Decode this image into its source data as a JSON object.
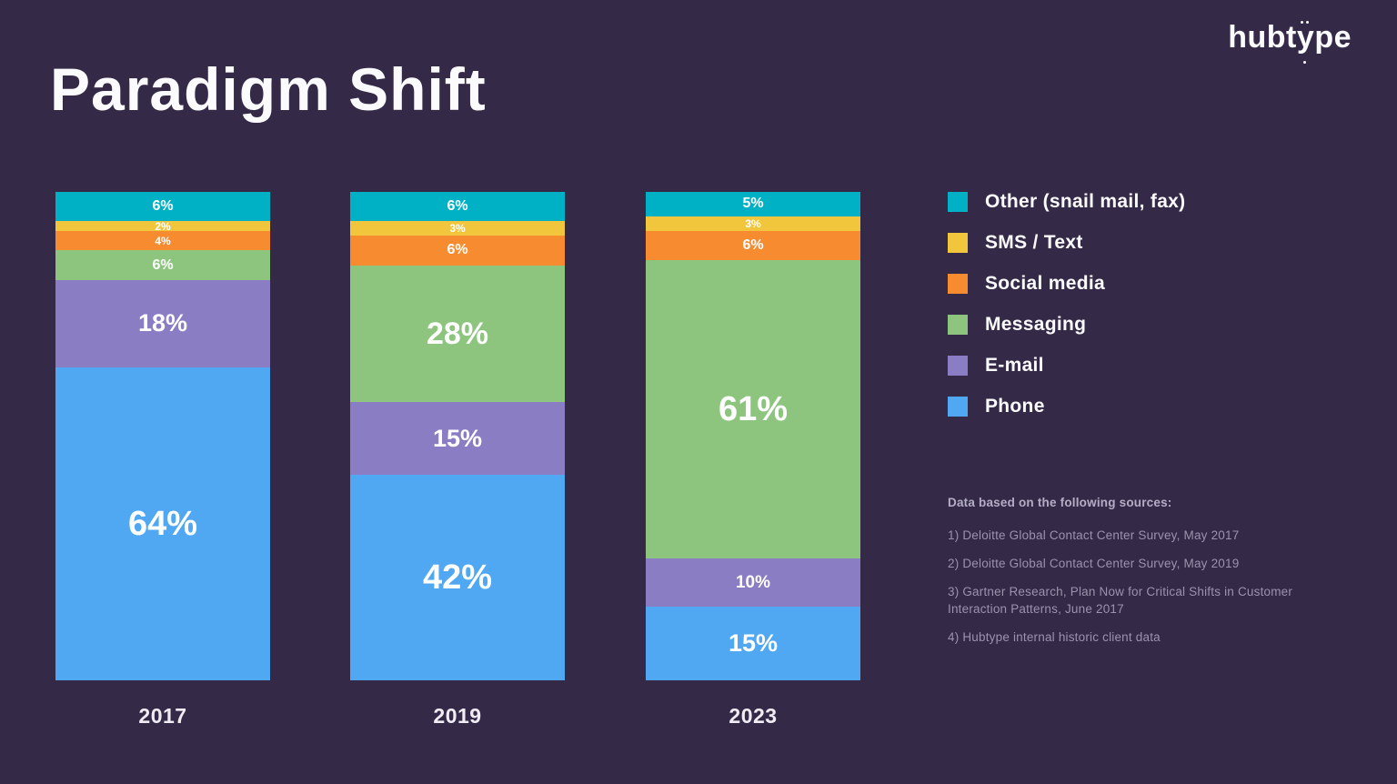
{
  "header": {
    "title": "Paradigm Shift",
    "logo": {
      "part1": "hubt",
      "part2": "y",
      "part3": "pe",
      "name": "hubtype"
    }
  },
  "colors": {
    "background": "#342a48",
    "other": "#00b1c5",
    "sms": "#f2c63c",
    "social": "#f78b30",
    "messaging": "#8dc57f",
    "email": "#8a7dc3",
    "phone": "#50a8f2"
  },
  "chart_data": {
    "type": "bar",
    "subtype": "stacked-vertical-100pct",
    "title": "Paradigm Shift",
    "categories": [
      "2017",
      "2019",
      "2023"
    ],
    "stack_order_top_to_bottom": [
      "Other (snail mail, fax)",
      "SMS / Text",
      "Social media",
      "Messaging",
      "E-mail",
      "Phone"
    ],
    "value_suffix": "%",
    "ylim": [
      0,
      100
    ],
    "grid": false,
    "legend_position": "right",
    "series": [
      {
        "name": "Other (snail mail, fax)",
        "color": "#00b1c5",
        "values": [
          6,
          6,
          5
        ]
      },
      {
        "name": "SMS / Text",
        "color": "#f2c63c",
        "values": [
          2,
          3,
          3
        ]
      },
      {
        "name": "Social media",
        "color": "#f78b30",
        "values": [
          4,
          6,
          6
        ]
      },
      {
        "name": "Messaging",
        "color": "#8dc57f",
        "values": [
          6,
          28,
          61
        ]
      },
      {
        "name": "E-mail",
        "color": "#8a7dc3",
        "values": [
          18,
          15,
          10
        ]
      },
      {
        "name": "Phone",
        "color": "#50a8f2",
        "values": [
          64,
          42,
          15
        ]
      }
    ]
  },
  "legend": {
    "items": [
      {
        "label": "Other (snail mail, fax)",
        "color": "#00b1c5"
      },
      {
        "label": "SMS / Text",
        "color": "#f2c63c"
      },
      {
        "label": "Social media",
        "color": "#f78b30"
      },
      {
        "label": "Messaging",
        "color": "#8dc57f"
      },
      {
        "label": "E-mail",
        "color": "#8a7dc3"
      },
      {
        "label": "Phone",
        "color": "#50a8f2"
      }
    ]
  },
  "sources": {
    "heading": "Data based on the following sources:",
    "items": [
      "1) Deloitte Global Contact Center Survey, May 2017",
      "2) Deloitte Global Contact Center Survey, May 2019",
      "3) Gartner Research, Plan Now for Critical Shifts in Customer Interaction Patterns, June 2017",
      "4) Hubtype internal historic client data"
    ]
  }
}
